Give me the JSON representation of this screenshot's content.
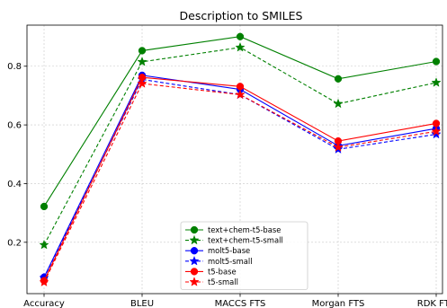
{
  "chart_data": {
    "type": "line",
    "title": "Description to SMILES",
    "xlabel": "",
    "ylabel": "",
    "categories": [
      "Accuracy",
      "BLEU",
      "MACCS FTS",
      "Morgan FTS",
      "RDK FTS"
    ],
    "ylim": [
      0.025,
      0.94
    ],
    "yticks": [
      0.2,
      0.4,
      0.6,
      0.8
    ],
    "ytick_labels": [
      "0.2",
      "0.4",
      "0.6",
      "0.8"
    ],
    "grid": true,
    "legend_position": "bottom-center",
    "series": [
      {
        "name": "text+chem-t5-base",
        "color": "#008000",
        "linestyle": "solid",
        "marker": "circle",
        "values": [
          0.322,
          0.853,
          0.901,
          0.757,
          0.816
        ]
      },
      {
        "name": "text+chem-t5-small",
        "color": "#008000",
        "linestyle": "dashed",
        "marker": "star",
        "values": [
          0.191,
          0.815,
          0.864,
          0.672,
          0.744
        ]
      },
      {
        "name": "molt5-base",
        "color": "#0000ff",
        "linestyle": "solid",
        "marker": "circle",
        "values": [
          0.081,
          0.769,
          0.721,
          0.529,
          0.588
        ]
      },
      {
        "name": "molt5-small",
        "color": "#0000ff",
        "linestyle": "dashed",
        "marker": "star",
        "values": [
          0.079,
          0.755,
          0.703,
          0.517,
          0.568
        ]
      },
      {
        "name": "t5-base",
        "color": "#ff0000",
        "linestyle": "solid",
        "marker": "circle",
        "values": [
          0.069,
          0.762,
          0.731,
          0.545,
          0.605
        ]
      },
      {
        "name": "t5-small",
        "color": "#ff0000",
        "linestyle": "dashed",
        "marker": "star",
        "values": [
          0.064,
          0.741,
          0.703,
          0.524,
          0.578
        ]
      }
    ]
  }
}
